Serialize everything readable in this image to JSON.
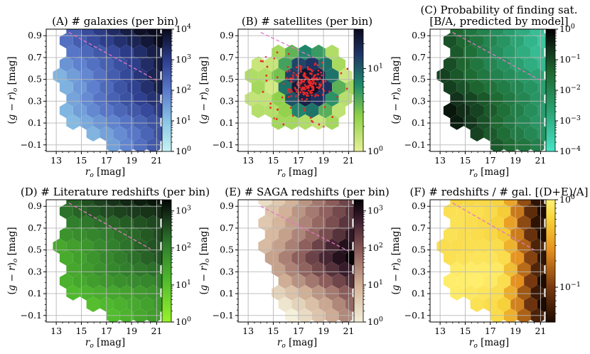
{
  "figure": {
    "x_label": "r_o [mag]",
    "y_label": "(g − r)_o [mag]",
    "x_ticks": [
      "13",
      "15",
      "17",
      "19",
      "21"
    ],
    "y_ticks": [
      "0.9",
      "0.7",
      "0.5",
      "0.3",
      "0.1",
      "−0.1"
    ]
  },
  "chart_data": [
    {
      "id": "A",
      "type": "heatmap",
      "title": "(A) # galaxies (per bin)",
      "xlim": [
        12.2,
        21.6
      ],
      "ylim": [
        -0.16,
        0.96
      ],
      "colormap": "light-blue to dark-navy",
      "colorscale": "log",
      "clim": [
        1,
        10000
      ],
      "colorbar_ticks": [
        [
          "10^0",
          1
        ],
        [
          "10^1",
          10
        ],
        [
          "10^2",
          100
        ],
        [
          "10^3",
          1000
        ],
        [
          "10^4",
          10000
        ]
      ],
      "reference_line": {
        "style": "dashed",
        "color": "#e377c2",
        "points": [
          [
            14.0,
            0.93
          ],
          [
            21.0,
            0.49
          ]
        ]
      },
      "shape": "wide"
    },
    {
      "id": "B",
      "type": "heatmap",
      "title": "(B) # satellites (per bin)",
      "xlim": [
        12.2,
        21.6
      ],
      "ylim": [
        -0.16,
        0.96
      ],
      "colormap": "yellow-green to teal to navy",
      "colorscale": "log",
      "clim": [
        1,
        30
      ],
      "colorbar_ticks": [
        [
          "10^0",
          1
        ],
        [
          "10^1",
          10
        ]
      ],
      "reference_line": {
        "style": "dashed",
        "color": "#e377c2",
        "points": [
          [
            14.0,
            0.93
          ],
          [
            18.2,
            0.7
          ]
        ]
      },
      "shape": "satellites",
      "overlay": "red points: individual satellites, concentrated near r_o 17–19, (g−r)_o 0.35–0.6"
    },
    {
      "id": "C",
      "type": "heatmap",
      "title": "(C) Probability of finding sat.",
      "title2": "[B/A, predicted by model]",
      "xlim": [
        12.2,
        21.6
      ],
      "ylim": [
        -0.16,
        0.96
      ],
      "colormap": "turquoise to green to black",
      "colorscale": "log",
      "clim": [
        0.0001,
        1
      ],
      "colorbar_ticks": [
        [
          "10^0",
          1
        ],
        [
          "10^−1",
          0.1
        ],
        [
          "10^−2",
          0.01
        ],
        [
          "10^−3",
          0.001
        ],
        [
          "10^−4",
          0.0001
        ]
      ],
      "reference_line": {
        "style": "dashed",
        "color": "#e377c2",
        "points": [
          [
            14.0,
            0.93
          ],
          [
            21.0,
            0.49
          ]
        ]
      },
      "shape": "wide"
    },
    {
      "id": "D",
      "type": "heatmap",
      "title": "(D) # Literature redshifts (per bin)",
      "xlim": [
        12.2,
        21.6
      ],
      "ylim": [
        -0.16,
        0.96
      ],
      "colormap": "bright green to black",
      "colorscale": "log",
      "clim": [
        1,
        2000
      ],
      "colorbar_ticks": [
        [
          "10^0",
          1
        ],
        [
          "10^1",
          10
        ],
        [
          "10^2",
          100
        ],
        [
          "10^3",
          1000
        ]
      ],
      "reference_line": {
        "style": "dashed",
        "color": "#e377c2",
        "points": [
          [
            14.0,
            0.93
          ],
          [
            20.5,
            0.51
          ]
        ]
      },
      "shape": "wide"
    },
    {
      "id": "E",
      "type": "heatmap",
      "title": "(E) # SAGA redshifts (per bin)",
      "xlim": [
        12.2,
        21.6
      ],
      "ylim": [
        -0.16,
        0.96
      ],
      "colormap": "pale cream to brown to black",
      "colorscale": "log",
      "clim": [
        1,
        2000
      ],
      "colorbar_ticks": [
        [
          "10^0",
          1
        ],
        [
          "10^1",
          10
        ],
        [
          "10^2",
          100
        ],
        [
          "10^3",
          1000
        ]
      ],
      "reference_line": {
        "style": "dashed",
        "color": "#e377c2",
        "points": [
          [
            14.0,
            0.9
          ],
          [
            21.0,
            0.49
          ]
        ]
      },
      "shape": "saga"
    },
    {
      "id": "F",
      "type": "heatmap",
      "title": "(F) # redshifts / # gal. [(D+E)/A]",
      "xlim": [
        12.2,
        21.6
      ],
      "ylim": [
        -0.16,
        0.96
      ],
      "colormap": "yellow to orange to black (reversed)",
      "colorscale": "log",
      "clim": [
        0.04,
        1
      ],
      "colorbar_ticks": [
        [
          "10^0",
          1
        ],
        [
          "10^−1",
          0.1
        ]
      ],
      "reference_line": {
        "style": "dashed",
        "color": "#e377c2",
        "points": [
          [
            14.0,
            0.93
          ],
          [
            20.5,
            0.5
          ]
        ]
      },
      "shape": "wide"
    }
  ]
}
